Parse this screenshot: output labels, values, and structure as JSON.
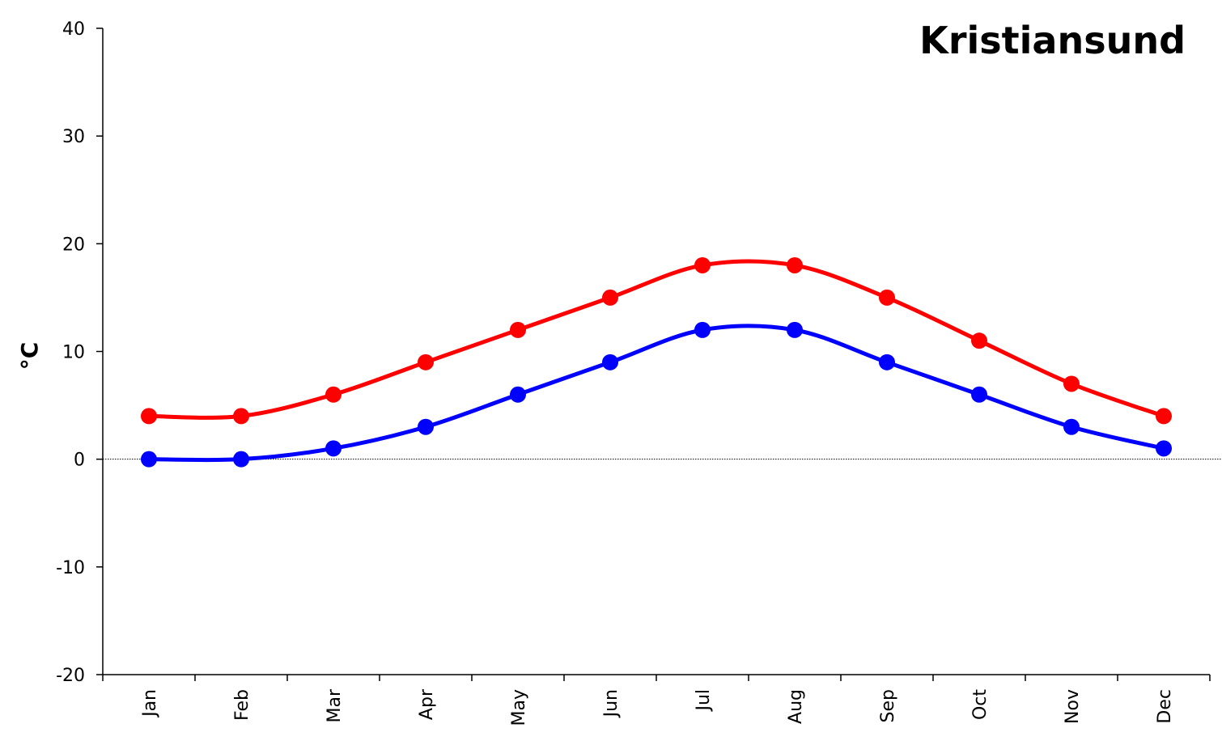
{
  "chart_data": {
    "type": "line",
    "title": "Kristiansund",
    "ylabel": "°C",
    "xlabel": "",
    "categories": [
      "Jan",
      "Feb",
      "Mar",
      "Apr",
      "May",
      "Jun",
      "Jul",
      "Aug",
      "Sep",
      "Oct",
      "Nov",
      "Dec"
    ],
    "ylim": [
      -20,
      40
    ],
    "yticks": [
      -20,
      -10,
      0,
      10,
      20,
      30,
      40
    ],
    "grid": false,
    "zero_line": true,
    "series": [
      {
        "color": "#ff0000",
        "values": [
          4,
          4,
          6,
          9,
          12,
          15,
          18,
          18,
          15,
          11,
          7,
          4
        ]
      },
      {
        "color": "#0000ff",
        "values": [
          0,
          0,
          1,
          3,
          6,
          9,
          12,
          12,
          9,
          6,
          3,
          1
        ]
      }
    ]
  }
}
